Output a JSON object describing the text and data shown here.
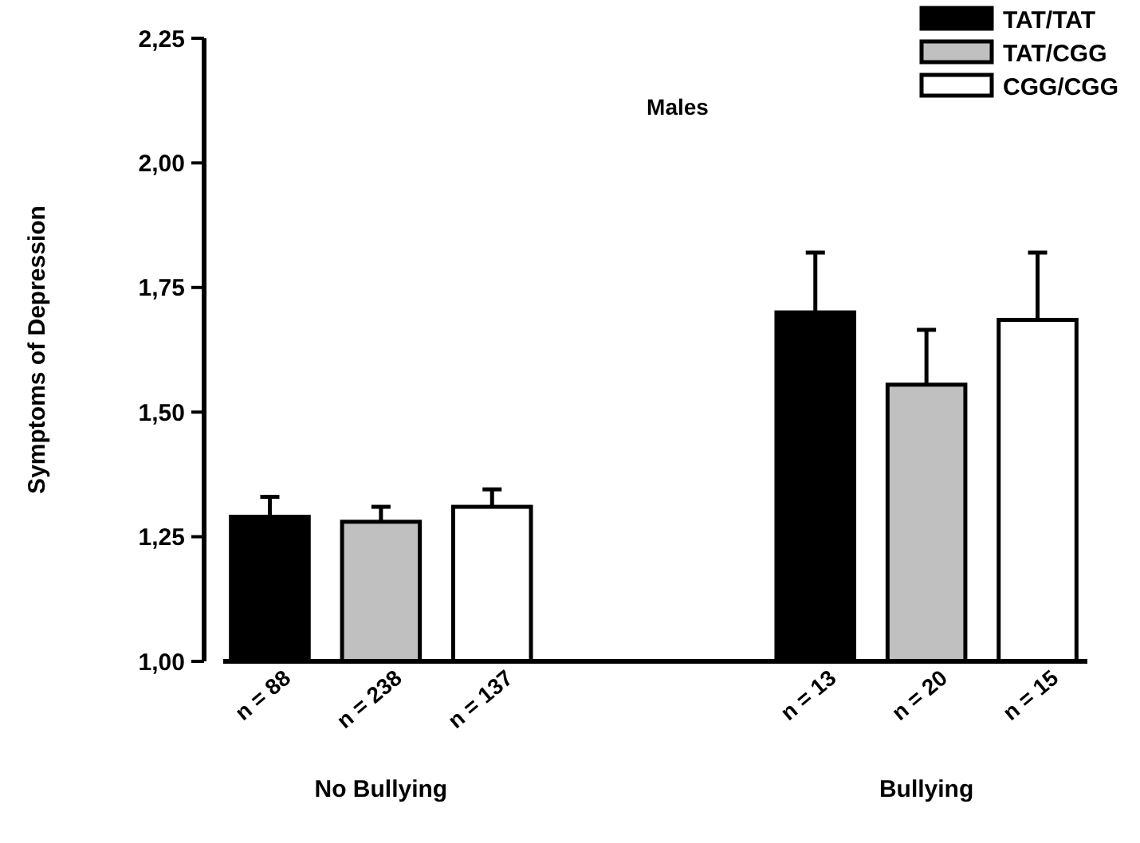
{
  "chart_data": {
    "type": "bar",
    "title": "Males",
    "ylabel": "Symptoms of Depression",
    "categories": [
      "No Bullying",
      "Bullying"
    ],
    "series": [
      {
        "name": "TAT/TAT",
        "color": "#000000",
        "values": [
          1.29,
          1.7
        ],
        "errors": [
          [
            1.29,
            1.33
          ],
          [
            1.7,
            1.82
          ]
        ]
      },
      {
        "name": "TAT/CGG",
        "color": "#c0c0c0",
        "values": [
          1.28,
          1.555
        ],
        "errors": [
          [
            1.28,
            1.31
          ],
          [
            1.555,
            1.665
          ]
        ]
      },
      {
        "name": "CGG/CGG",
        "color": "#ffffff",
        "values": [
          1.31,
          1.685
        ],
        "errors": [
          [
            1.31,
            1.345
          ],
          [
            1.685,
            1.82
          ]
        ]
      }
    ],
    "annotations": [
      "n = 88",
      "n = 238",
      "n = 137",
      "n = 13",
      "n = 20",
      "n = 15"
    ],
    "ylim": [
      1,
      2.25
    ],
    "yticks": [
      {
        "value": 1,
        "label": "1,00"
      },
      {
        "value": 1.25,
        "label": "1,25"
      },
      {
        "value": 1.5,
        "label": "1,50"
      },
      {
        "value": 1.75,
        "label": "1,75"
      },
      {
        "value": 2,
        "label": "2,00"
      },
      {
        "value": 2.25,
        "label": "2,25"
      }
    ],
    "legend": "top right"
  }
}
